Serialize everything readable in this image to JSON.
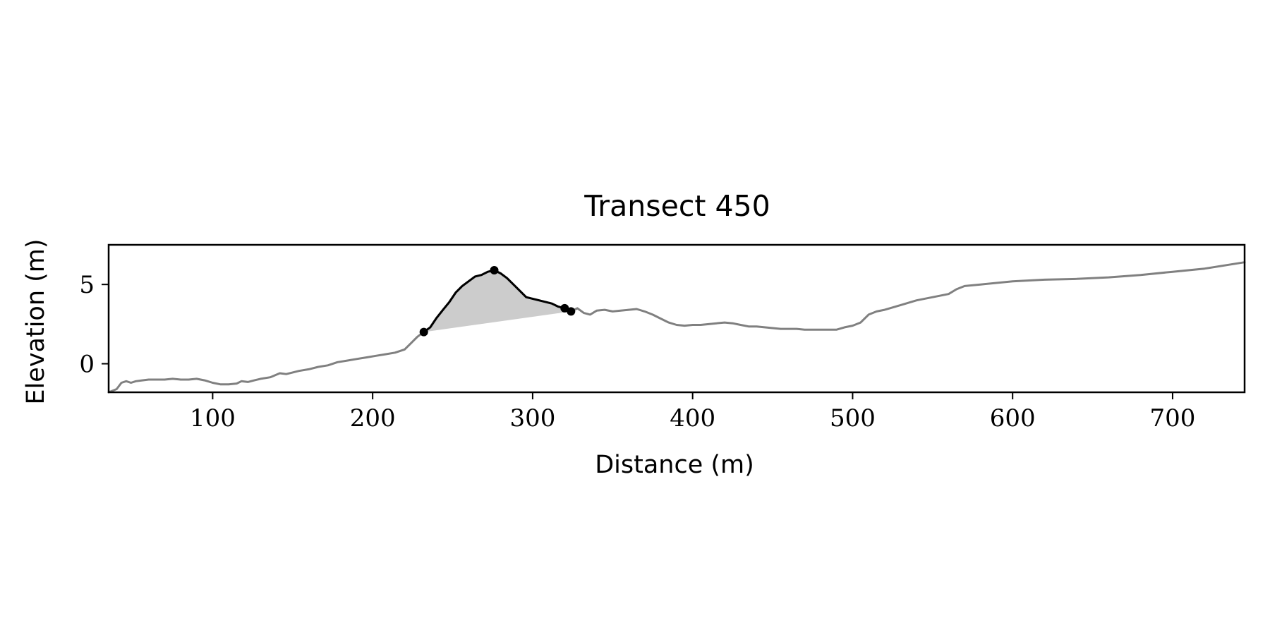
{
  "chart_data": {
    "type": "line",
    "title": "Transect 450",
    "xlabel": "Distance (m)",
    "ylabel": "Elevation (m)",
    "xlim": [
      35,
      745
    ],
    "ylim": [
      -1.8,
      7.5
    ],
    "xticks": [
      100,
      200,
      300,
      400,
      500,
      600,
      700
    ],
    "yticks": [
      0,
      5
    ],
    "grid": false,
    "legend": "none",
    "series": [
      {
        "role": "full profile",
        "color": "#808080",
        "x": [
          35,
          40,
          43,
          46,
          49,
          52,
          56,
          60,
          65,
          70,
          75,
          80,
          85,
          90,
          95,
          100,
          105,
          110,
          115,
          118,
          122,
          126,
          130,
          136,
          142,
          146,
          150,
          154,
          160,
          166,
          172,
          178,
          184,
          190,
          196,
          202,
          208,
          214,
          220,
          224,
          228,
          232,
          236,
          240,
          244,
          248,
          252,
          256,
          260,
          264,
          268,
          272,
          276,
          280,
          284,
          288,
          292,
          296,
          300,
          304,
          308,
          312,
          316,
          320,
          324,
          328,
          332,
          336,
          340,
          345,
          350,
          355,
          360,
          365,
          370,
          375,
          380,
          385,
          390,
          395,
          400,
          405,
          410,
          415,
          420,
          425,
          430,
          435,
          440,
          445,
          450,
          455,
          460,
          465,
          470,
          480,
          490,
          495,
          500,
          505,
          510,
          515,
          520,
          530,
          540,
          550,
          560,
          565,
          570,
          580,
          600,
          620,
          640,
          660,
          680,
          700,
          720,
          745
        ],
        "y": [
          -1.8,
          -1.6,
          -1.2,
          -1.1,
          -1.2,
          -1.1,
          -1.05,
          -1.0,
          -1.0,
          -1.0,
          -0.95,
          -1.0,
          -1.0,
          -0.95,
          -1.05,
          -1.2,
          -1.3,
          -1.3,
          -1.25,
          -1.1,
          -1.15,
          -1.05,
          -0.95,
          -0.85,
          -0.6,
          -0.65,
          -0.55,
          -0.45,
          -0.35,
          -0.2,
          -0.1,
          0.1,
          0.2,
          0.3,
          0.4,
          0.5,
          0.6,
          0.7,
          0.9,
          1.3,
          1.7,
          2.0,
          2.3,
          2.9,
          3.4,
          3.9,
          4.5,
          4.9,
          5.2,
          5.5,
          5.6,
          5.8,
          5.9,
          5.7,
          5.4,
          5.0,
          4.6,
          4.2,
          4.1,
          4.0,
          3.9,
          3.8,
          3.6,
          3.5,
          3.3,
          3.5,
          3.2,
          3.1,
          3.35,
          3.4,
          3.3,
          3.35,
          3.4,
          3.45,
          3.3,
          3.1,
          2.85,
          2.6,
          2.45,
          2.4,
          2.45,
          2.45,
          2.5,
          2.55,
          2.6,
          2.55,
          2.45,
          2.35,
          2.35,
          2.3,
          2.25,
          2.2,
          2.2,
          2.2,
          2.15,
          2.15,
          2.15,
          2.3,
          2.4,
          2.6,
          3.1,
          3.3,
          3.4,
          3.7,
          4.0,
          4.2,
          4.4,
          4.7,
          4.9,
          5.0,
          5.2,
          5.3,
          5.35,
          5.45,
          5.6,
          5.8,
          6.0,
          6.4
        ]
      },
      {
        "role": "highlighted dune segment",
        "color": "#000000",
        "x": [
          232,
          236,
          240,
          244,
          248,
          252,
          256,
          260,
          264,
          268,
          272,
          276,
          280,
          284,
          288,
          292,
          296,
          300,
          304,
          308,
          312,
          316,
          320,
          324
        ],
        "y": [
          2.0,
          2.3,
          2.9,
          3.4,
          3.9,
          4.5,
          4.9,
          5.2,
          5.5,
          5.6,
          5.8,
          5.9,
          5.7,
          5.4,
          5.0,
          4.6,
          4.2,
          4.1,
          4.0,
          3.9,
          3.8,
          3.6,
          3.5,
          3.3
        ]
      }
    ],
    "points": [
      {
        "x": 232,
        "y": 2.0
      },
      {
        "x": 276,
        "y": 5.9
      },
      {
        "x": 320,
        "y": 3.5
      },
      {
        "x": 324,
        "y": 3.3
      }
    ],
    "shaded_region": {
      "color": "#cccccc",
      "x_start": 232,
      "x_end": 324
    },
    "colors": {
      "axes": "#000000",
      "background": "#ffffff"
    }
  }
}
